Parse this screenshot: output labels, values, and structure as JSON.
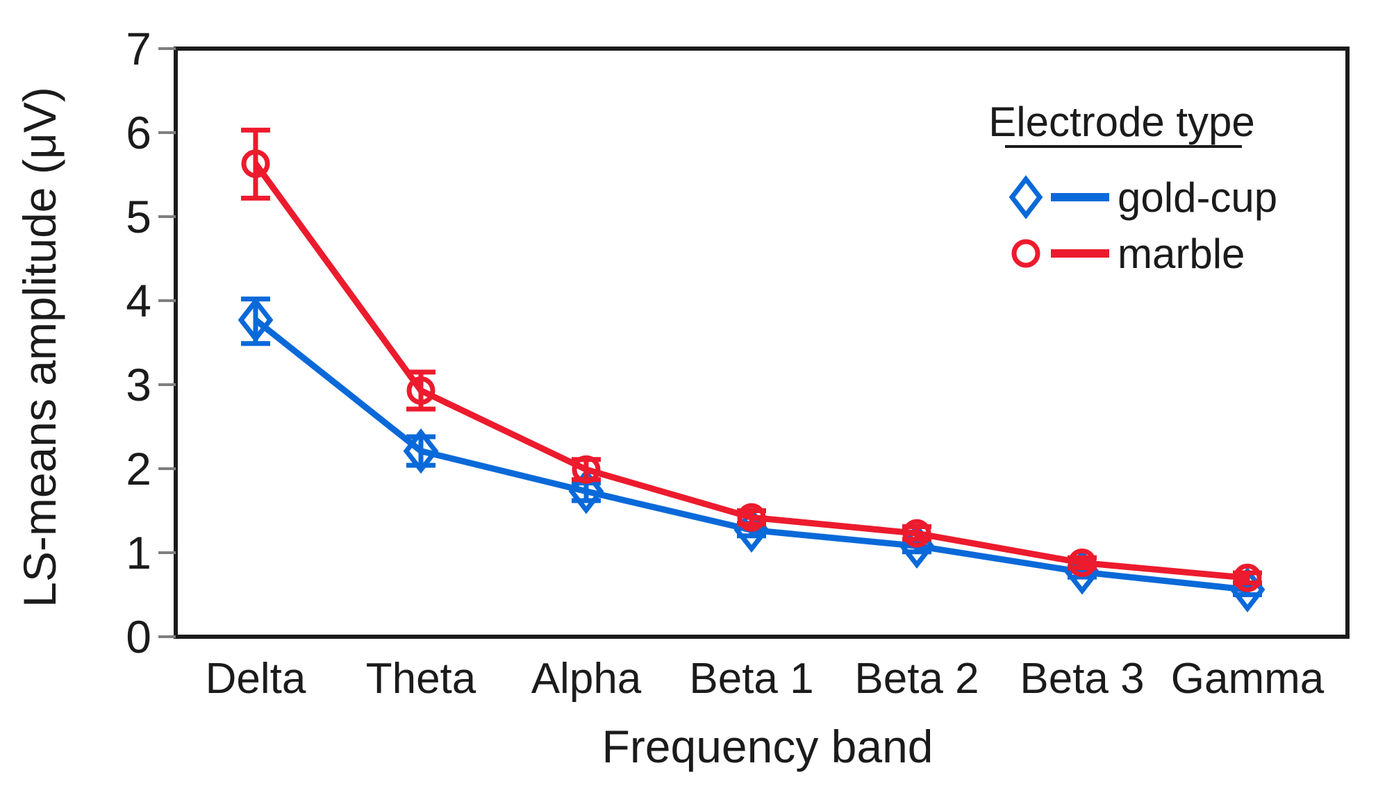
{
  "chart_data": {
    "type": "line",
    "title": "",
    "xlabel": "Frequency band",
    "ylabel": "LS-means amplitude (μV)",
    "categories": [
      "Delta",
      "Theta",
      "Alpha",
      "Beta 1",
      "Beta 2",
      "Beta 3",
      "Gamma"
    ],
    "ylim": [
      0,
      7
    ],
    "yticks": [
      0,
      1,
      2,
      3,
      4,
      5,
      6,
      7
    ],
    "grid": false,
    "legend": {
      "title": "Electrode type",
      "position": "top-right",
      "title_underlined": true
    },
    "series": [
      {
        "name": "gold-cup",
        "color": "#0a69d9",
        "marker": "diamond",
        "values": [
          3.77,
          2.21,
          1.73,
          1.27,
          1.08,
          0.77,
          0.56
        ],
        "err_lo": [
          3.49,
          2.04,
          1.62,
          1.2,
          1.01,
          0.71,
          0.5
        ],
        "err_hi": [
          4.02,
          2.38,
          1.83,
          1.35,
          1.15,
          0.83,
          0.62
        ]
      },
      {
        "name": "marble",
        "color": "#ec1b2d",
        "marker": "circle",
        "values": [
          5.63,
          2.93,
          1.99,
          1.42,
          1.23,
          0.88,
          0.7
        ],
        "err_lo": [
          5.22,
          2.71,
          1.87,
          1.34,
          1.16,
          0.82,
          0.64
        ],
        "err_hi": [
          6.03,
          3.15,
          2.11,
          1.5,
          1.31,
          0.94,
          0.76
        ]
      }
    ],
    "frame_color": "#1b1b1b",
    "tick_color": "#7f7f7f",
    "text_color": "#1b1b1b",
    "background": "#ffffff"
  }
}
